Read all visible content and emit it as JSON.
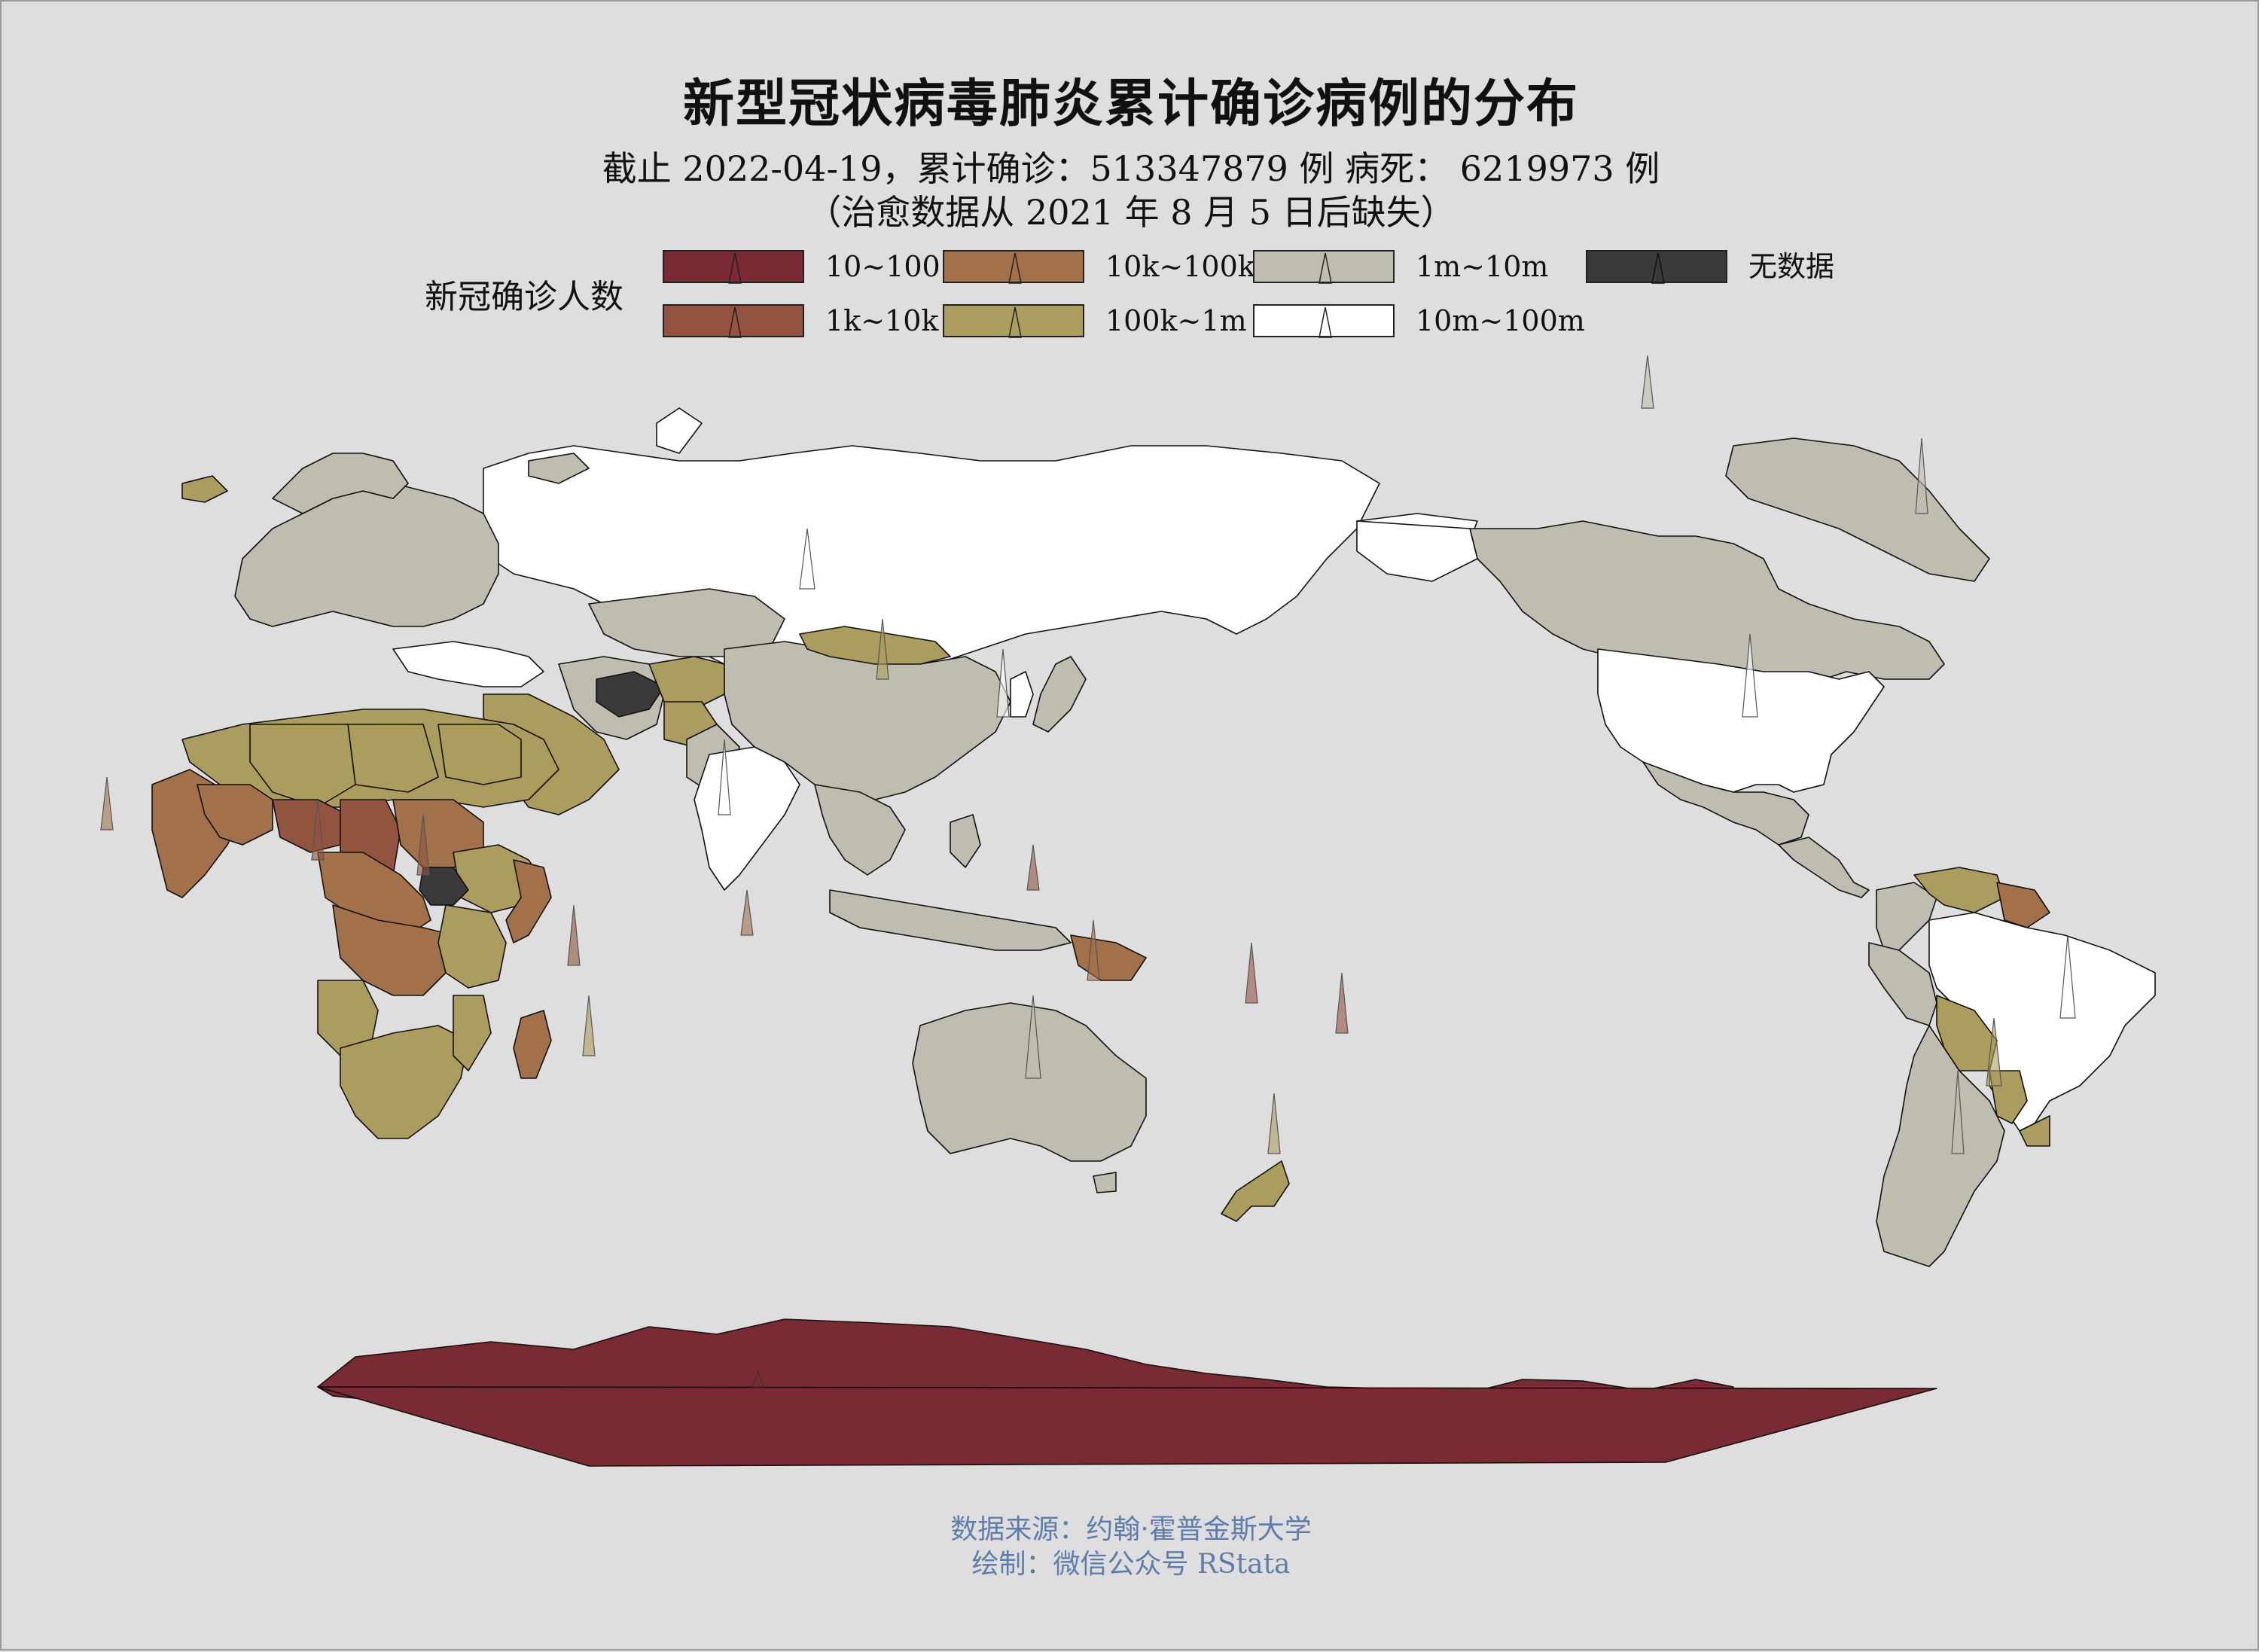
{
  "title": "新型冠状病毒肺炎累计确诊病例的分布",
  "subtitle_line1": "截止 2022-04-19，累计确诊：513347879 例  病死：  6219973 例",
  "subtitle_line2": "（治愈数据从 2021 年 8 月 5 日后缺失）",
  "legend": {
    "title": "新冠确诊人数",
    "items": [
      {
        "label": "10~100",
        "color": "#7a2a32"
      },
      {
        "label": "1k~10k",
        "color": "#93543f"
      },
      {
        "label": "10k~100k",
        "color": "#a2714a"
      },
      {
        "label": "100k~1m",
        "color": "#ab9d5e"
      },
      {
        "label": "1m~10m",
        "color": "#bfbdb0"
      },
      {
        "label": "10m~100m",
        "color": "#ffffff"
      },
      {
        "label": "无数据",
        "color": "#3a3a3a"
      }
    ]
  },
  "map": {
    "projection": "Robinson, centered on Pacific",
    "background": "#dedede",
    "regions": [
      {
        "name": "Antarctica",
        "class": "10~100"
      },
      {
        "name": "Russia",
        "class": "10m~100m"
      },
      {
        "name": "United States",
        "class": "10m~100m"
      },
      {
        "name": "Brazil",
        "class": "10m~100m"
      },
      {
        "name": "India",
        "class": "10m~100m"
      },
      {
        "name": "Greenland",
        "class": "1m~10m"
      },
      {
        "name": "Canada",
        "class": "1m~10m"
      },
      {
        "name": "Mexico",
        "class": "1m~10m"
      },
      {
        "name": "China",
        "class": "1m~10m"
      },
      {
        "name": "Kazakhstan",
        "class": "1m~10m"
      },
      {
        "name": "Australia",
        "class": "1m~10m"
      },
      {
        "name": "Argentina",
        "class": "1m~10m"
      },
      {
        "name": "Indonesia",
        "class": "1m~10m"
      },
      {
        "name": "Japan",
        "class": "1m~10m"
      },
      {
        "name": "Mongolia",
        "class": "100k~1m"
      },
      {
        "name": "New Zealand",
        "class": "100k~1m"
      },
      {
        "name": "Saudi Arabia",
        "class": "100k~1m"
      },
      {
        "name": "Algeria",
        "class": "100k~1m"
      },
      {
        "name": "Libya",
        "class": "100k~1m"
      },
      {
        "name": "Egypt",
        "class": "100k~1m"
      },
      {
        "name": "Bolivia",
        "class": "100k~1m"
      },
      {
        "name": "Venezuela",
        "class": "100k~1m"
      },
      {
        "name": "Mali",
        "class": "10k~100k"
      },
      {
        "name": "Niger",
        "class": "1k~10k"
      },
      {
        "name": "Chad",
        "class": "1k~10k"
      },
      {
        "name": "Sudan",
        "class": "10k~100k"
      },
      {
        "name": "DR Congo",
        "class": "10k~100k"
      },
      {
        "name": "Angola",
        "class": "100k~1m"
      },
      {
        "name": "Madagascar",
        "class": "10k~100k"
      },
      {
        "name": "Papua New Guinea",
        "class": "10k~100k"
      },
      {
        "name": "Turkmenistan",
        "class": "无数据"
      },
      {
        "name": "South Sudan",
        "class": "无数据"
      },
      {
        "name": "North Korea",
        "class": "无数据"
      }
    ]
  },
  "source_line1": "数据来源：约翰·霍普金斯大学",
  "source_line2": "绘制：微信公众号 RStata"
}
